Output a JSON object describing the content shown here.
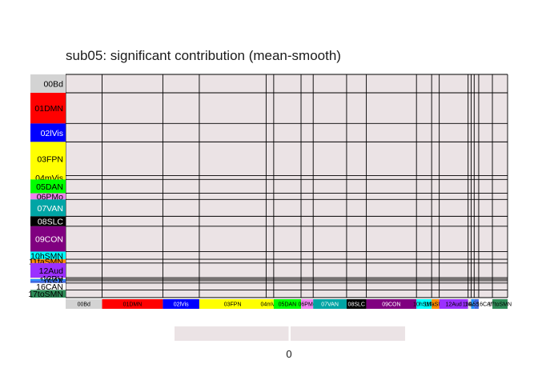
{
  "chart_data": {
    "type": "heatmap",
    "title": "sub05: significant contribution (mean-smooth)",
    "xlabel": "",
    "ylabel": "",
    "cell_color": "#ebe3e5",
    "networks": [
      {
        "label": "00Bd",
        "size": 24,
        "color": "#d3d3d3",
        "text": "#000000"
      },
      {
        "label": "01DMN",
        "size": 40,
        "color": "#ff0000",
        "text": "#000000"
      },
      {
        "label": "02lVis",
        "size": 24,
        "color": "#0000ff",
        "text": "#ffffff"
      },
      {
        "label": "03FPN",
        "size": 44,
        "color": "#ffff00",
        "text": "#000000"
      },
      {
        "label": "04mVis",
        "size": 5,
        "color": "#ffff00",
        "text": "#000000"
      },
      {
        "label": "05DAN",
        "size": 18,
        "color": "#00ff00",
        "text": "#000000"
      },
      {
        "label": "06PMo",
        "size": 8,
        "color": "#ee82ee",
        "text": "#000000"
      },
      {
        "label": "07VAN",
        "size": 22,
        "color": "#00a5a5",
        "text": "#ffffff"
      },
      {
        "label": "08SLC",
        "size": 13,
        "color": "#000000",
        "text": "#ffffff"
      },
      {
        "label": "09CON",
        "size": 33,
        "color": "#800080",
        "text": "#ffffff"
      },
      {
        "label": "10hSMN",
        "size": 10,
        "color": "#00ffff",
        "text": "#000000"
      },
      {
        "label": "11faSMN",
        "size": 5,
        "color": "#ff8c00",
        "text": "#000000"
      },
      {
        "label": "12Aud",
        "size": 19,
        "color": "#9b30ff",
        "text": "#000000"
      },
      {
        "label": "13PH",
        "size": 2,
        "color": "#e0e0e0",
        "text": "#000000"
      },
      {
        "label": "14vAtt",
        "size": 2,
        "color": "#1e90ff",
        "text": "#000000"
      },
      {
        "label": "15SA",
        "size": 3,
        "color": "#4169e1",
        "text": "#000000"
      },
      {
        "label": "16CAN",
        "size": 9,
        "color": "#ffffff",
        "text": "#000000"
      },
      {
        "label": "17toSMN",
        "size": 10,
        "color": "#2e8b57",
        "text": "#000000"
      }
    ],
    "legend": {
      "tick_label": "0"
    }
  }
}
